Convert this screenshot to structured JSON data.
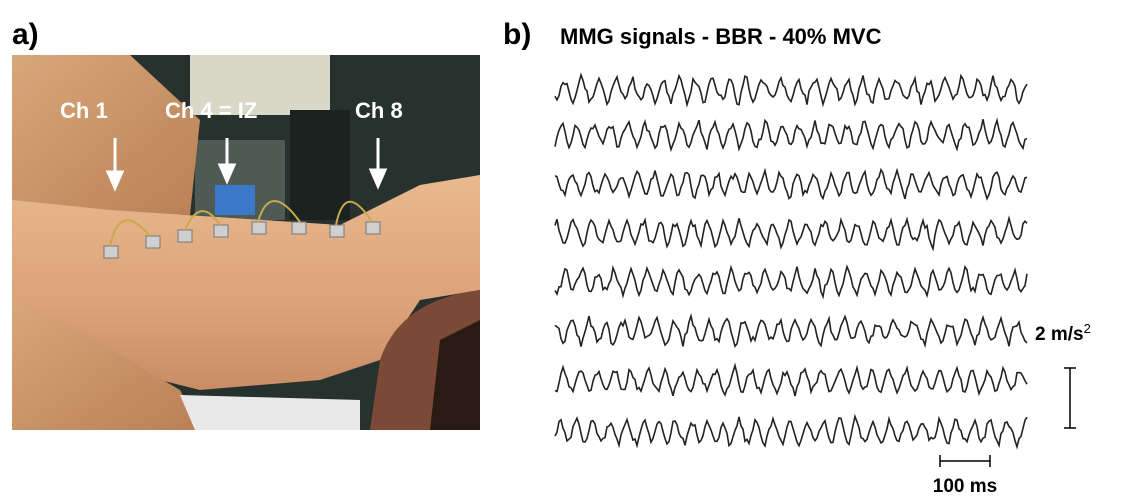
{
  "panel_a": {
    "label": "a)",
    "channels": [
      "Ch 1",
      "Ch 4 = IZ",
      "Ch 8"
    ]
  },
  "panel_b": {
    "label": "b)",
    "title": "MMG signals  -  BBR - 40% MVC",
    "amplitude_scale": {
      "text": "2 m/s",
      "exponent": "2"
    },
    "time_scale": "100 ms"
  }
}
